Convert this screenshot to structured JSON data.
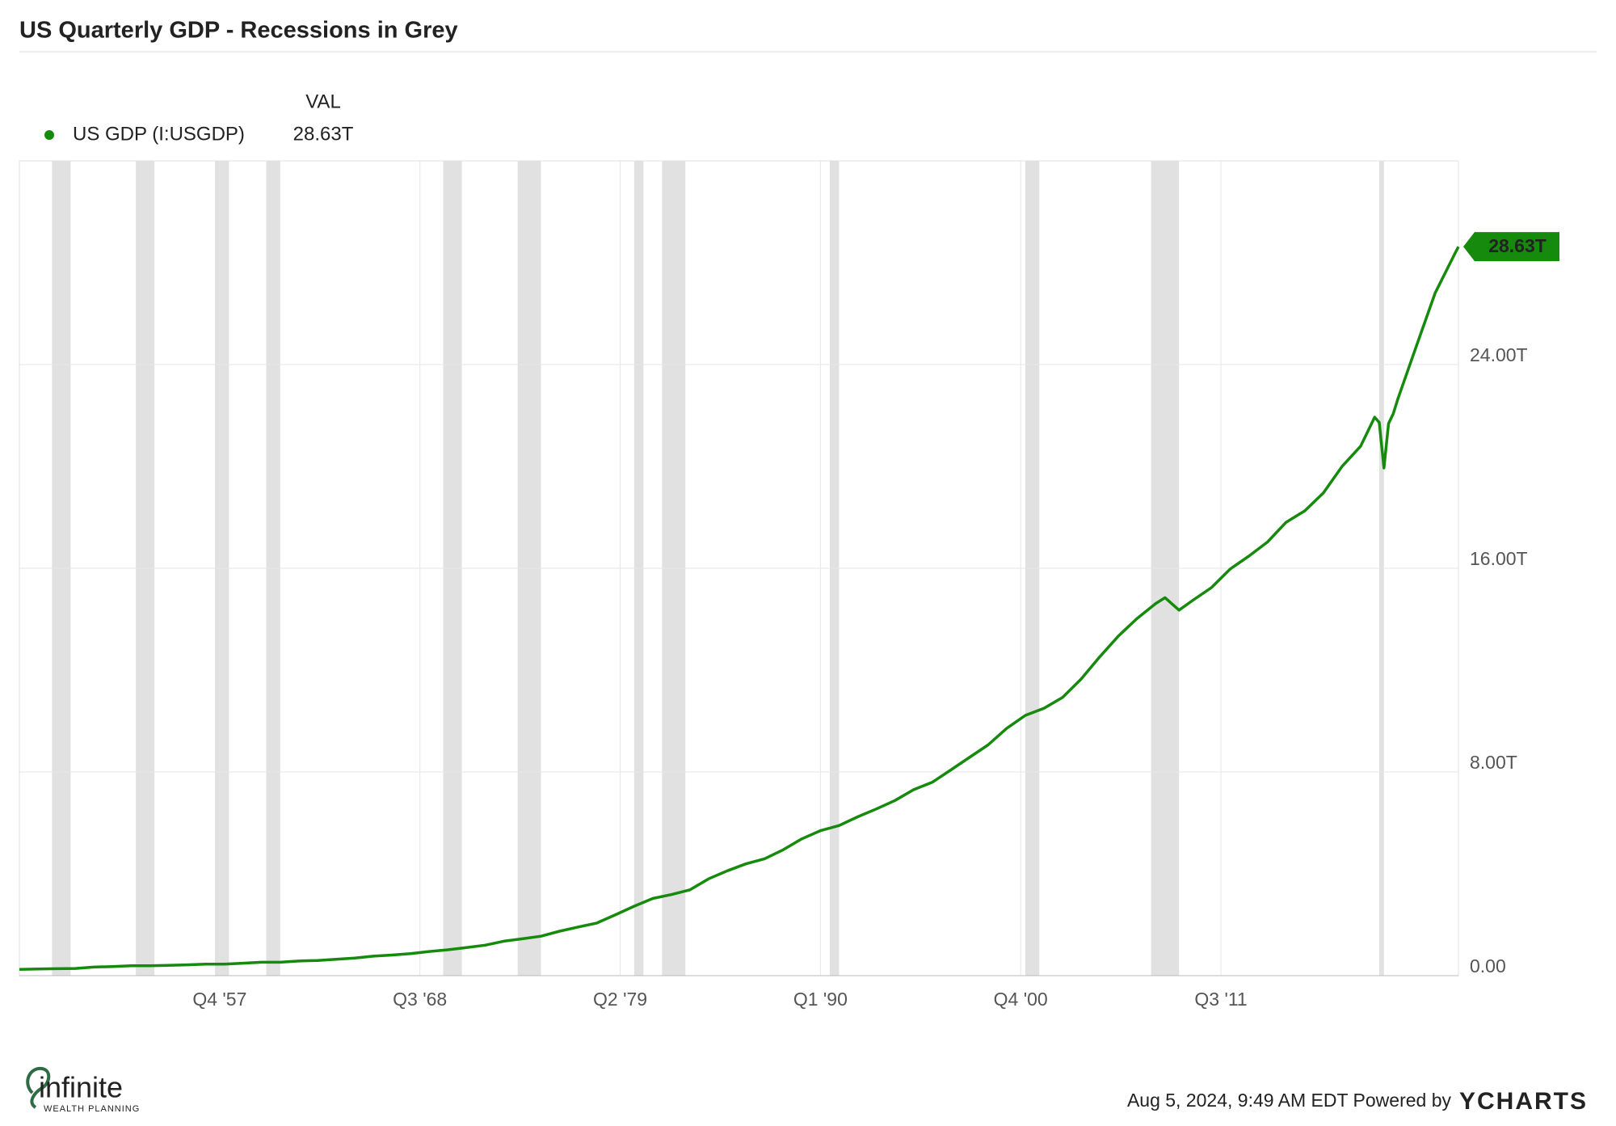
{
  "chart_data": {
    "type": "line",
    "title": "US Quarterly GDP - Recessions in Grey",
    "legend_header": "VAL",
    "current_value": 28.63,
    "current_value_label": "28.63T",
    "footer": "Aug 5, 2024, 9:49 AM EDT Powered by",
    "brand": "YCHARTS",
    "logo_name": "infinite",
    "logo_tagline": "WEALTH PLANNING",
    "x": [
      "1947 Q1",
      "1948 Q1",
      "1949 Q1",
      "1950 Q1",
      "1951 Q1",
      "1952 Q1",
      "1953 Q1",
      "1954 Q1",
      "1955 Q1",
      "1956 Q1",
      "1957 Q1",
      "1958 Q1",
      "1959 Q1",
      "1960 Q1",
      "1961 Q1",
      "1962 Q1",
      "1963 Q1",
      "1964 Q1",
      "1965 Q1",
      "1966 Q1",
      "1967 Q1",
      "1968 Q1",
      "1969 Q1",
      "1970 Q1",
      "1971 Q1",
      "1972 Q1",
      "1973 Q1",
      "1974 Q1",
      "1975 Q1",
      "1976 Q1",
      "1977 Q1",
      "1978 Q1",
      "1979 Q1",
      "1980 Q1",
      "1981 Q1",
      "1982 Q1",
      "1983 Q1",
      "1984 Q1",
      "1985 Q1",
      "1986 Q1",
      "1987 Q1",
      "1988 Q1",
      "1989 Q1",
      "1990 Q1",
      "1991 Q1",
      "1992 Q1",
      "1993 Q1",
      "1994 Q1",
      "1995 Q1",
      "1996 Q1",
      "1997 Q1",
      "1998 Q1",
      "1999 Q1",
      "2000 Q1",
      "2001 Q1",
      "2002 Q1",
      "2003 Q1",
      "2004 Q1",
      "2005 Q1",
      "2006 Q1",
      "2007 Q1",
      "2008 Q1",
      "2008 Q3",
      "2009 Q2",
      "2010 Q1",
      "2011 Q1",
      "2012 Q1",
      "2013 Q1",
      "2014 Q1",
      "2015 Q1",
      "2016 Q1",
      "2017 Q1",
      "2018 Q1",
      "2019 Q1",
      "2019 Q4",
      "2020 Q1",
      "2020 Q2",
      "2020 Q3",
      "2020 Q4",
      "2021 Q1",
      "2022 Q1",
      "2023 Q1",
      "2024 Q1",
      "2024 Q2"
    ],
    "series": [
      {
        "name": "US GDP (I:USGDP)",
        "color": "#168a0c",
        "values": [
          0.243,
          0.261,
          0.272,
          0.281,
          0.336,
          0.36,
          0.387,
          0.386,
          0.404,
          0.426,
          0.454,
          0.454,
          0.489,
          0.528,
          0.528,
          0.575,
          0.598,
          0.645,
          0.693,
          0.764,
          0.809,
          0.865,
          0.949,
          1.016,
          1.101,
          1.197,
          1.351,
          1.449,
          1.548,
          1.745,
          1.911,
          2.068,
          2.394,
          2.727,
          3.032,
          3.183,
          3.371,
          3.803,
          4.119,
          4.392,
          4.59,
          4.943,
          5.373,
          5.696,
          5.894,
          6.238,
          6.545,
          6.879,
          7.301,
          7.595,
          8.078,
          8.57,
          9.065,
          9.71,
          10.221,
          10.499,
          10.929,
          11.65,
          12.528,
          13.339,
          14.028,
          14.616,
          14.843,
          14.356,
          14.746,
          15.244,
          15.973,
          16.476,
          17.033,
          17.807,
          18.255,
          18.962,
          19.996,
          20.798,
          21.933,
          21.727,
          19.935,
          21.684,
          22.068,
          22.657,
          24.741,
          26.814,
          28.27,
          28.63
        ]
      }
    ],
    "recessions": [
      {
        "start": "1948 Q4",
        "end": "1949 Q4"
      },
      {
        "start": "1953 Q2",
        "end": "1954 Q2"
      },
      {
        "start": "1957 Q3",
        "end": "1958 Q2"
      },
      {
        "start": "1960 Q2",
        "end": "1961 Q1"
      },
      {
        "start": "1969 Q4",
        "end": "1970 Q4"
      },
      {
        "start": "1973 Q4",
        "end": "1975 Q1"
      },
      {
        "start": "1980 Q1",
        "end": "1980 Q3"
      },
      {
        "start": "1981 Q3",
        "end": "1982 Q4"
      },
      {
        "start": "1990 Q3",
        "end": "1991 Q1"
      },
      {
        "start": "2001 Q1",
        "end": "2001 Q4"
      },
      {
        "start": "2007 Q4",
        "end": "2009 Q2"
      },
      {
        "start": "2020 Q1",
        "end": "2020 Q2"
      }
    ],
    "recession_color": "#e1e1e1",
    "xlim": [
      "1947 Q1",
      "2024 Q2"
    ],
    "xticks": [
      {
        "value": "1957 Q4",
        "label": "Q4 '57"
      },
      {
        "value": "1968 Q3",
        "label": "Q3 '68"
      },
      {
        "value": "1979 Q2",
        "label": "Q2 '79"
      },
      {
        "value": "1990 Q1",
        "label": "Q1 '90"
      },
      {
        "value": "2000 Q4",
        "label": "Q4 '00"
      },
      {
        "value": "2011 Q3",
        "label": "Q3 '11"
      }
    ],
    "ylim": [
      0,
      32
    ],
    "yticks": [
      {
        "value": 0,
        "label": "0.00"
      },
      {
        "value": 8,
        "label": "8.00T"
      },
      {
        "value": 16,
        "label": "16.00T"
      },
      {
        "value": 24,
        "label": "24.00T"
      }
    ],
    "grid": true
  }
}
